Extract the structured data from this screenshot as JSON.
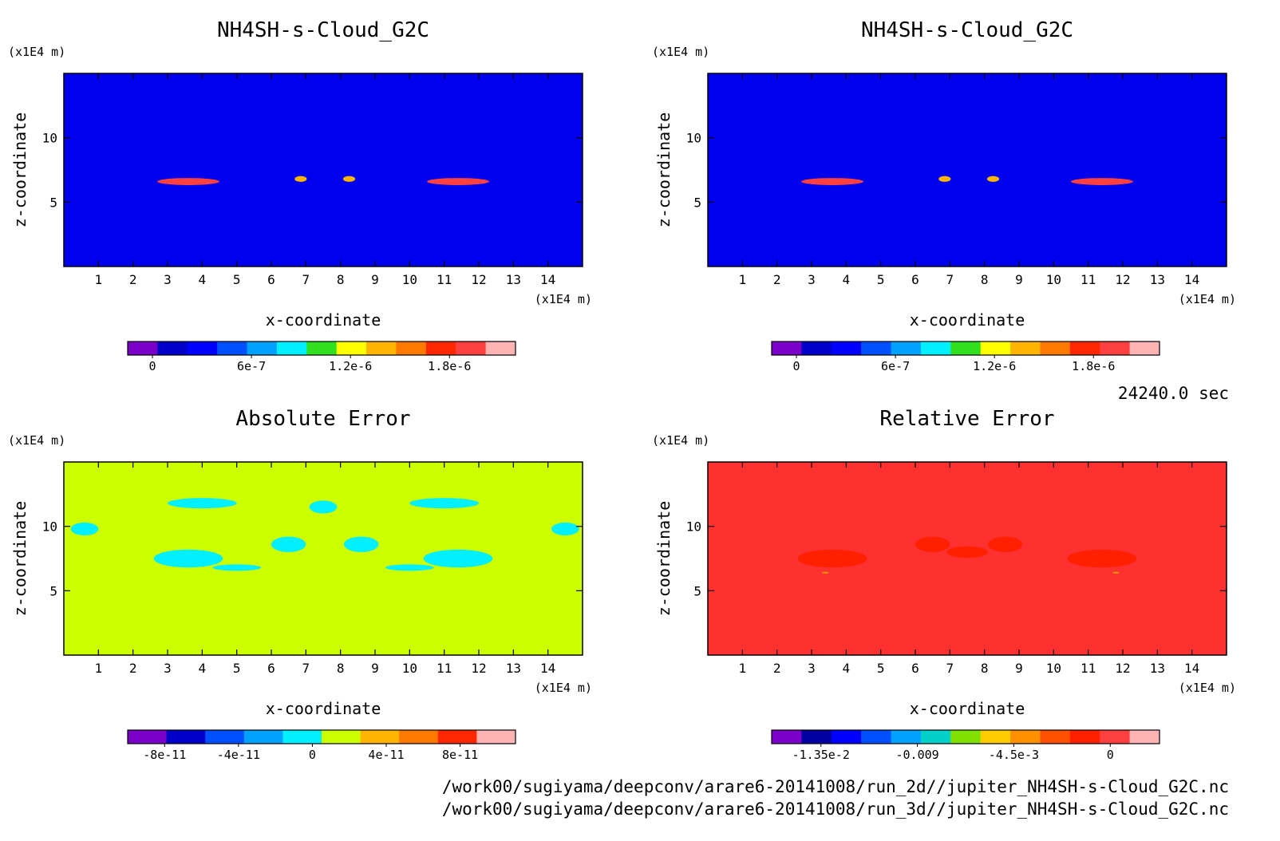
{
  "time_label": "24240.0 sec",
  "file_paths": [
    "/work00/sugiyama/deepconv/arare6-20141008/run_2d//jupiter_NH4SH-s-Cloud_G2C.nc",
    "/work00/sugiyama/deepconv/arare6-20141008/run_3d//jupiter_NH4SH-s-Cloud_G2C.nc"
  ],
  "chart_data": [
    {
      "type": "heatmap",
      "title": "NH4SH-s-Cloud_G2C",
      "xlabel": "x-coordinate",
      "ylabel": "z-coordinate",
      "x_unit": "(x1E4 m)",
      "y_unit": "(x1E4 m)",
      "xlim": [
        0,
        15
      ],
      "ylim": [
        0,
        15
      ],
      "xticks": [
        1,
        2,
        3,
        4,
        5,
        6,
        7,
        8,
        9,
        10,
        11,
        12,
        13,
        14
      ],
      "yticks": [
        5,
        10
      ],
      "background_color": "#0000ee",
      "colorbar": {
        "colors": [
          "#7a00c8",
          "#0000c8",
          "#0000ff",
          "#0050ff",
          "#00a0ff",
          "#00f0ff",
          "#30e020",
          "#ffff00",
          "#ffb400",
          "#ff7800",
          "#ff2800",
          "#ff4040",
          "#ffb4b4"
        ],
        "tick_labels": [
          "0",
          "6e-7",
          "1.2e-6",
          "1.8e-6"
        ],
        "tick_values": [
          0,
          6e-07,
          1.2e-06,
          1.8e-06
        ],
        "range": [
          -1.5e-07,
          2.2e-06
        ]
      },
      "features": [
        {
          "x": 3.6,
          "z": 6.6,
          "width": 1.8,
          "height": 0.55,
          "value": 1.9e-06
        },
        {
          "x": 11.4,
          "z": 6.6,
          "width": 1.8,
          "height": 0.55,
          "value": 1.9e-06
        },
        {
          "x": 6.85,
          "z": 6.8,
          "width": 0.35,
          "height": 0.45,
          "value": 1.3e-06
        },
        {
          "x": 8.25,
          "z": 6.8,
          "width": 0.35,
          "height": 0.45,
          "value": 1.3e-06
        }
      ]
    },
    {
      "type": "heatmap",
      "title": "NH4SH-s-Cloud_G2C",
      "xlabel": "x-coordinate",
      "ylabel": "z-coordinate",
      "x_unit": "(x1E4 m)",
      "y_unit": "(x1E4 m)",
      "xlim": [
        0,
        15
      ],
      "ylim": [
        0,
        15
      ],
      "xticks": [
        1,
        2,
        3,
        4,
        5,
        6,
        7,
        8,
        9,
        10,
        11,
        12,
        13,
        14
      ],
      "yticks": [
        5,
        10
      ],
      "background_color": "#0000ee",
      "colorbar": {
        "colors": [
          "#7a00c8",
          "#0000c8",
          "#0000ff",
          "#0050ff",
          "#00a0ff",
          "#00f0ff",
          "#30e020",
          "#ffff00",
          "#ffb400",
          "#ff7800",
          "#ff2800",
          "#ff4040",
          "#ffb4b4"
        ],
        "tick_labels": [
          "0",
          "6e-7",
          "1.2e-6",
          "1.8e-6"
        ],
        "tick_values": [
          0,
          6e-07,
          1.2e-06,
          1.8e-06
        ],
        "range": [
          -1.5e-07,
          2.2e-06
        ]
      },
      "features": [
        {
          "x": 3.6,
          "z": 6.6,
          "width": 1.8,
          "height": 0.55,
          "value": 1.9e-06
        },
        {
          "x": 11.4,
          "z": 6.6,
          "width": 1.8,
          "height": 0.55,
          "value": 1.9e-06
        },
        {
          "x": 6.85,
          "z": 6.8,
          "width": 0.35,
          "height": 0.45,
          "value": 1.3e-06
        },
        {
          "x": 8.25,
          "z": 6.8,
          "width": 0.35,
          "height": 0.45,
          "value": 1.3e-06
        }
      ]
    },
    {
      "type": "heatmap",
      "title": "Absolute Error",
      "xlabel": "x-coordinate",
      "ylabel": "z-coordinate",
      "x_unit": "(x1E4 m)",
      "y_unit": "(x1E4 m)",
      "xlim": [
        0,
        15
      ],
      "ylim": [
        0,
        15
      ],
      "xticks": [
        1,
        2,
        3,
        4,
        5,
        6,
        7,
        8,
        9,
        10,
        11,
        12,
        13,
        14
      ],
      "yticks": [
        5,
        10
      ],
      "background_color": "#ccff00",
      "colorbar": {
        "colors": [
          "#7a00c8",
          "#0000c8",
          "#0050ff",
          "#00a0ff",
          "#00f0ff",
          "#ccff00",
          "#ffb400",
          "#ff7800",
          "#ff2800",
          "#ffb4b4"
        ],
        "tick_labels": [
          "-8e-11",
          "-4e-11",
          "0",
          "4e-11",
          "8e-11"
        ],
        "tick_values": [
          -8e-11,
          -4e-11,
          0,
          4e-11,
          8e-11
        ],
        "range": [
          -1e-10,
          1.1e-10
        ]
      },
      "features": [
        {
          "x": 3.6,
          "z": 7.5,
          "width": 2.0,
          "height": 1.4,
          "value": -1e-11
        },
        {
          "x": 11.4,
          "z": 7.5,
          "width": 2.0,
          "height": 1.4,
          "value": -1e-11
        },
        {
          "x": 6.5,
          "z": 8.6,
          "width": 1.0,
          "height": 1.2,
          "value": -1e-11
        },
        {
          "x": 8.6,
          "z": 8.6,
          "width": 1.0,
          "height": 1.2,
          "value": -1e-11
        },
        {
          "x": 7.5,
          "z": 11.5,
          "width": 0.8,
          "height": 1.0,
          "value": -1e-11
        },
        {
          "x": 4.0,
          "z": 11.8,
          "width": 2.0,
          "height": 0.8,
          "value": -1e-11
        },
        {
          "x": 11.0,
          "z": 11.8,
          "width": 2.0,
          "height": 0.8,
          "value": -1e-11
        },
        {
          "x": 0.6,
          "z": 9.8,
          "width": 0.8,
          "height": 1.0,
          "value": -1e-11
        },
        {
          "x": 14.5,
          "z": 9.8,
          "width": 0.8,
          "height": 1.0,
          "value": -1e-11
        },
        {
          "x": 5.0,
          "z": 6.8,
          "width": 1.4,
          "height": 0.5,
          "value": -1e-11
        },
        {
          "x": 10.0,
          "z": 6.8,
          "width": 1.4,
          "height": 0.5,
          "value": -1e-11
        }
      ]
    },
    {
      "type": "heatmap",
      "title": "Relative Error",
      "xlabel": "x-coordinate",
      "ylabel": "z-coordinate",
      "x_unit": "(x1E4 m)",
      "y_unit": "(x1E4 m)",
      "xlim": [
        0,
        15
      ],
      "ylim": [
        0,
        15
      ],
      "xticks": [
        1,
        2,
        3,
        4,
        5,
        6,
        7,
        8,
        9,
        10,
        11,
        12,
        13,
        14
      ],
      "yticks": [
        5,
        10
      ],
      "background_color": "#ff3030",
      "colorbar": {
        "colors": [
          "#7a00c8",
          "#0000a0",
          "#0000ff",
          "#0050ff",
          "#00a0ff",
          "#00d0c8",
          "#80e000",
          "#ffcc00",
          "#ff9000",
          "#ff5000",
          "#ff2000",
          "#ff4040",
          "#ffb4b4"
        ],
        "tick_labels": [
          "-1.35e-2",
          "-0.009",
          "-4.5e-3",
          "0"
        ],
        "tick_values": [
          -0.0135,
          -0.009,
          -0.0045,
          0
        ],
        "range": [
          -0.0158,
          0.0023
        ]
      },
      "features": [
        {
          "x": 3.6,
          "z": 7.5,
          "width": 2.0,
          "height": 1.4,
          "value": -0.0008
        },
        {
          "x": 11.4,
          "z": 7.5,
          "width": 2.0,
          "height": 1.4,
          "value": -0.0008
        },
        {
          "x": 6.5,
          "z": 8.6,
          "width": 1.0,
          "height": 1.2,
          "value": -0.0008
        },
        {
          "x": 8.6,
          "z": 8.6,
          "width": 1.0,
          "height": 1.2,
          "value": -0.0008
        },
        {
          "x": 7.5,
          "z": 8.0,
          "width": 1.2,
          "height": 0.9,
          "value": -0.0008
        },
        {
          "x": 3.4,
          "z": 6.4,
          "width": 0.2,
          "height": 0.15,
          "value": -0.004
        },
        {
          "x": 11.8,
          "z": 6.4,
          "width": 0.2,
          "height": 0.15,
          "value": -0.004
        }
      ]
    }
  ]
}
